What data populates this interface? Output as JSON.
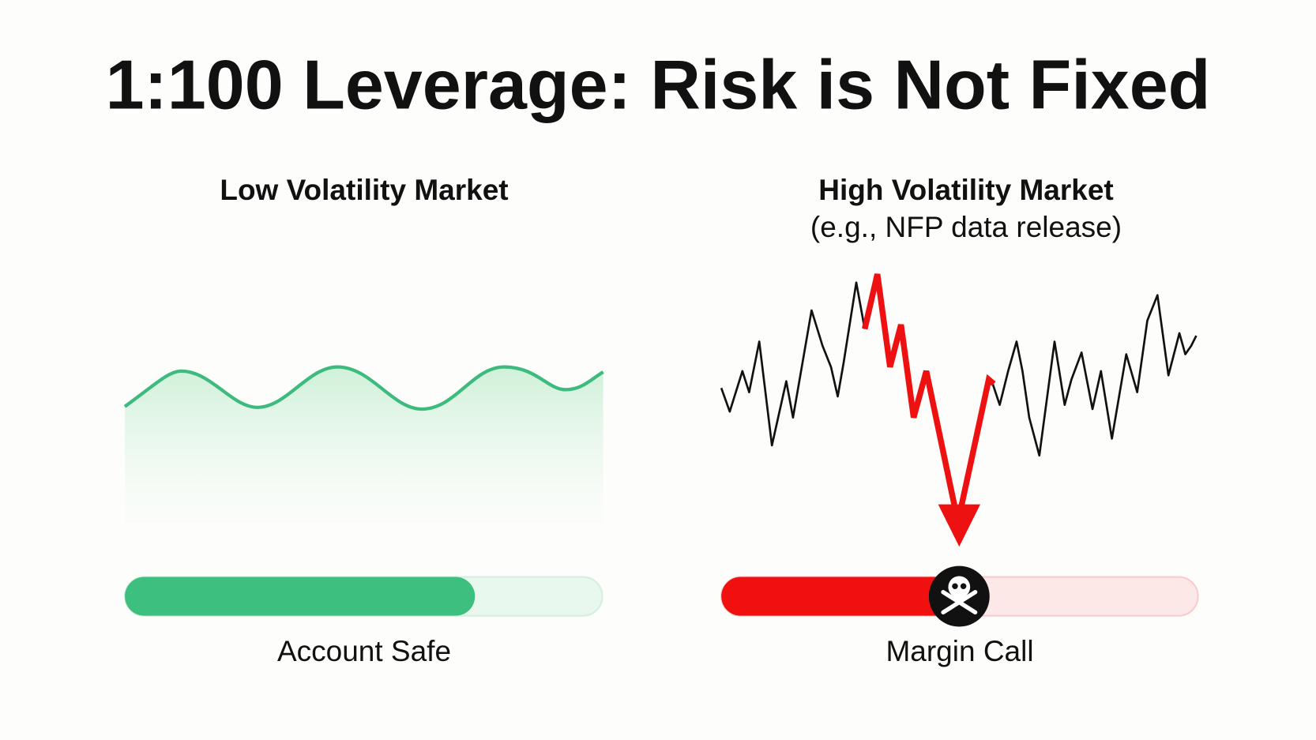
{
  "title": "1:100 Leverage: Risk is Not Fixed",
  "panels": [
    {
      "heading": "Low Volatility Market",
      "status": "Account Safe"
    },
    {
      "heading": "High Volatility Market",
      "subheading": "(e.g., NFP data release)",
      "status": "Margin Call"
    }
  ]
}
